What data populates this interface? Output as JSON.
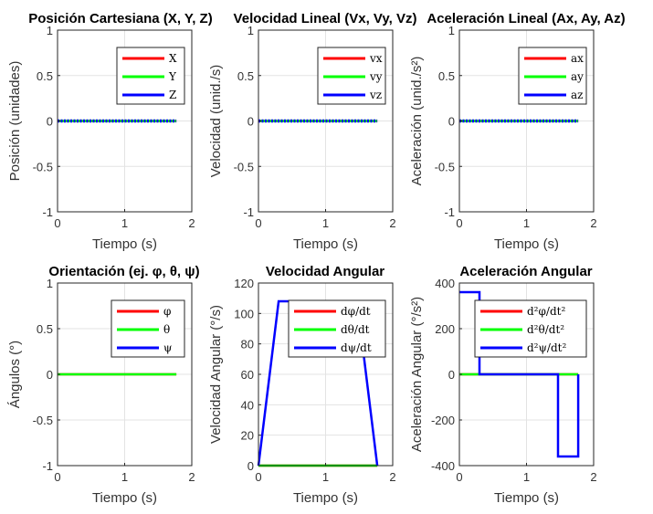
{
  "chart_data": [
    {
      "type": "line",
      "title": "Posición Cartesiana (X, Y, Z)",
      "xlabel": "Tiempo (s)",
      "ylabel": "Posición (unidades)",
      "xlim": [
        0,
        2
      ],
      "ylim": [
        -1,
        1
      ],
      "xticks": [
        0,
        1,
        2
      ],
      "yticks": [
        -1,
        -0.5,
        0,
        0.5,
        1
      ],
      "legend": "top-right",
      "grid": true,
      "series": [
        {
          "name": "X",
          "color": "#ff0000",
          "x": [
            0,
            1.77
          ],
          "y": [
            0,
            0
          ]
        },
        {
          "name": "Y",
          "color": "#00ff00",
          "x": [
            0,
            1.77
          ],
          "y": [
            0,
            0
          ]
        },
        {
          "name": "Z",
          "color": "#0000ff",
          "x": [
            0,
            1.77
          ],
          "y": [
            0,
            0
          ],
          "dotted": true
        }
      ]
    },
    {
      "type": "line",
      "title": "Velocidad Lineal (Vx, Vy, Vz)",
      "xlabel": "Tiempo (s)",
      "ylabel": "Velocidad (unid./s)",
      "xlim": [
        0,
        2
      ],
      "ylim": [
        -1,
        1
      ],
      "xticks": [
        0,
        1,
        2
      ],
      "yticks": [
        -1,
        -0.5,
        0,
        0.5,
        1
      ],
      "legend": "top-right",
      "grid": true,
      "series": [
        {
          "name": "vx",
          "color": "#ff0000",
          "x": [
            0,
            1.77
          ],
          "y": [
            0,
            0
          ]
        },
        {
          "name": "vy",
          "color": "#00ff00",
          "x": [
            0,
            1.77
          ],
          "y": [
            0,
            0
          ]
        },
        {
          "name": "vz",
          "color": "#0000ff",
          "x": [
            0,
            1.77
          ],
          "y": [
            0,
            0
          ],
          "dotted": true
        }
      ]
    },
    {
      "type": "line",
      "title": "Aceleración Lineal (Ax, Ay, Az)",
      "xlabel": "Tiempo (s)",
      "ylabel": "Aceleración (unid./s²)",
      "xlim": [
        0,
        2
      ],
      "ylim": [
        -1,
        1
      ],
      "xticks": [
        0,
        1,
        2
      ],
      "yticks": [
        -1,
        -0.5,
        0,
        0.5,
        1
      ],
      "legend": "top-right",
      "grid": true,
      "series": [
        {
          "name": "ax",
          "color": "#ff0000",
          "x": [
            0,
            1.77
          ],
          "y": [
            0,
            0
          ]
        },
        {
          "name": "ay",
          "color": "#00ff00",
          "x": [
            0,
            1.77
          ],
          "y": [
            0,
            0
          ]
        },
        {
          "name": "az",
          "color": "#0000ff",
          "x": [
            0,
            1.77
          ],
          "y": [
            0,
            0
          ],
          "dotted": true
        }
      ]
    },
    {
      "type": "line",
      "title": "Orientación (ej. φ, θ, ψ)",
      "xlabel": "Tiempo (s)",
      "ylabel": "Ángulos (°)",
      "xlim": [
        0,
        2
      ],
      "ylim": [
        -1,
        1
      ],
      "xticks": [
        0,
        1,
        2
      ],
      "yticks": [
        -1,
        -0.5,
        0,
        0.5,
        1
      ],
      "legend": "top-right",
      "grid": true,
      "series": [
        {
          "name": "φ",
          "color": "#ff0000",
          "x": [
            0,
            1.77
          ],
          "y": [
            0,
            0
          ]
        },
        {
          "name": "θ",
          "color": "#00ff00",
          "x": [
            0,
            1.77
          ],
          "y": [
            0,
            0
          ]
        },
        {
          "name": "ψ",
          "color": "#0000ff",
          "x": [
            0,
            1.77
          ],
          "y": [
            0,
            0
          ],
          "hidden": true
        }
      ]
    },
    {
      "type": "line",
      "title": "Velocidad Angular",
      "xlabel": "Tiempo (s)",
      "ylabel": "Velocidad Angular (°/s)",
      "xlim": [
        0,
        2
      ],
      "ylim": [
        0,
        120
      ],
      "xticks": [
        0,
        1,
        2
      ],
      "yticks": [
        0,
        20,
        40,
        60,
        80,
        100,
        120
      ],
      "legend": "top-right",
      "grid": true,
      "series": [
        {
          "name": "dφ/dt",
          "color": "#ff0000",
          "x": [
            0,
            1.77
          ],
          "y": [
            0,
            0
          ]
        },
        {
          "name": "dθ/dt",
          "color": "#00ff00",
          "x": [
            0,
            1.77
          ],
          "y": [
            0,
            0
          ]
        },
        {
          "name": "dψ/dt",
          "color": "#0000ff",
          "x": [
            0,
            0.3,
            1.47,
            1.77
          ],
          "y": [
            0,
            108,
            108,
            0
          ]
        }
      ]
    },
    {
      "type": "line",
      "title": "Aceleración Angular",
      "xlabel": "Tiempo (s)",
      "ylabel": "Aceleración Angular (°/s²)",
      "xlim": [
        0,
        2
      ],
      "ylim": [
        -400,
        400
      ],
      "xticks": [
        0,
        1,
        2
      ],
      "yticks": [
        -400,
        -200,
        0,
        200,
        400
      ],
      "legend": "top-right",
      "grid": true,
      "series": [
        {
          "name": "d²φ/dt²",
          "color": "#ff0000",
          "x": [
            0,
            1.77
          ],
          "y": [
            0,
            0
          ]
        },
        {
          "name": "d²θ/dt²",
          "color": "#00ff00",
          "x": [
            0,
            1.77
          ],
          "y": [
            0,
            0
          ]
        },
        {
          "name": "d²ψ/dt²",
          "color": "#0000ff",
          "x": [
            0,
            0.3,
            0.3,
            1.47,
            1.47,
            1.77,
            1.77
          ],
          "y": [
            360,
            360,
            0,
            0,
            -360,
            -360,
            0
          ]
        }
      ]
    }
  ]
}
